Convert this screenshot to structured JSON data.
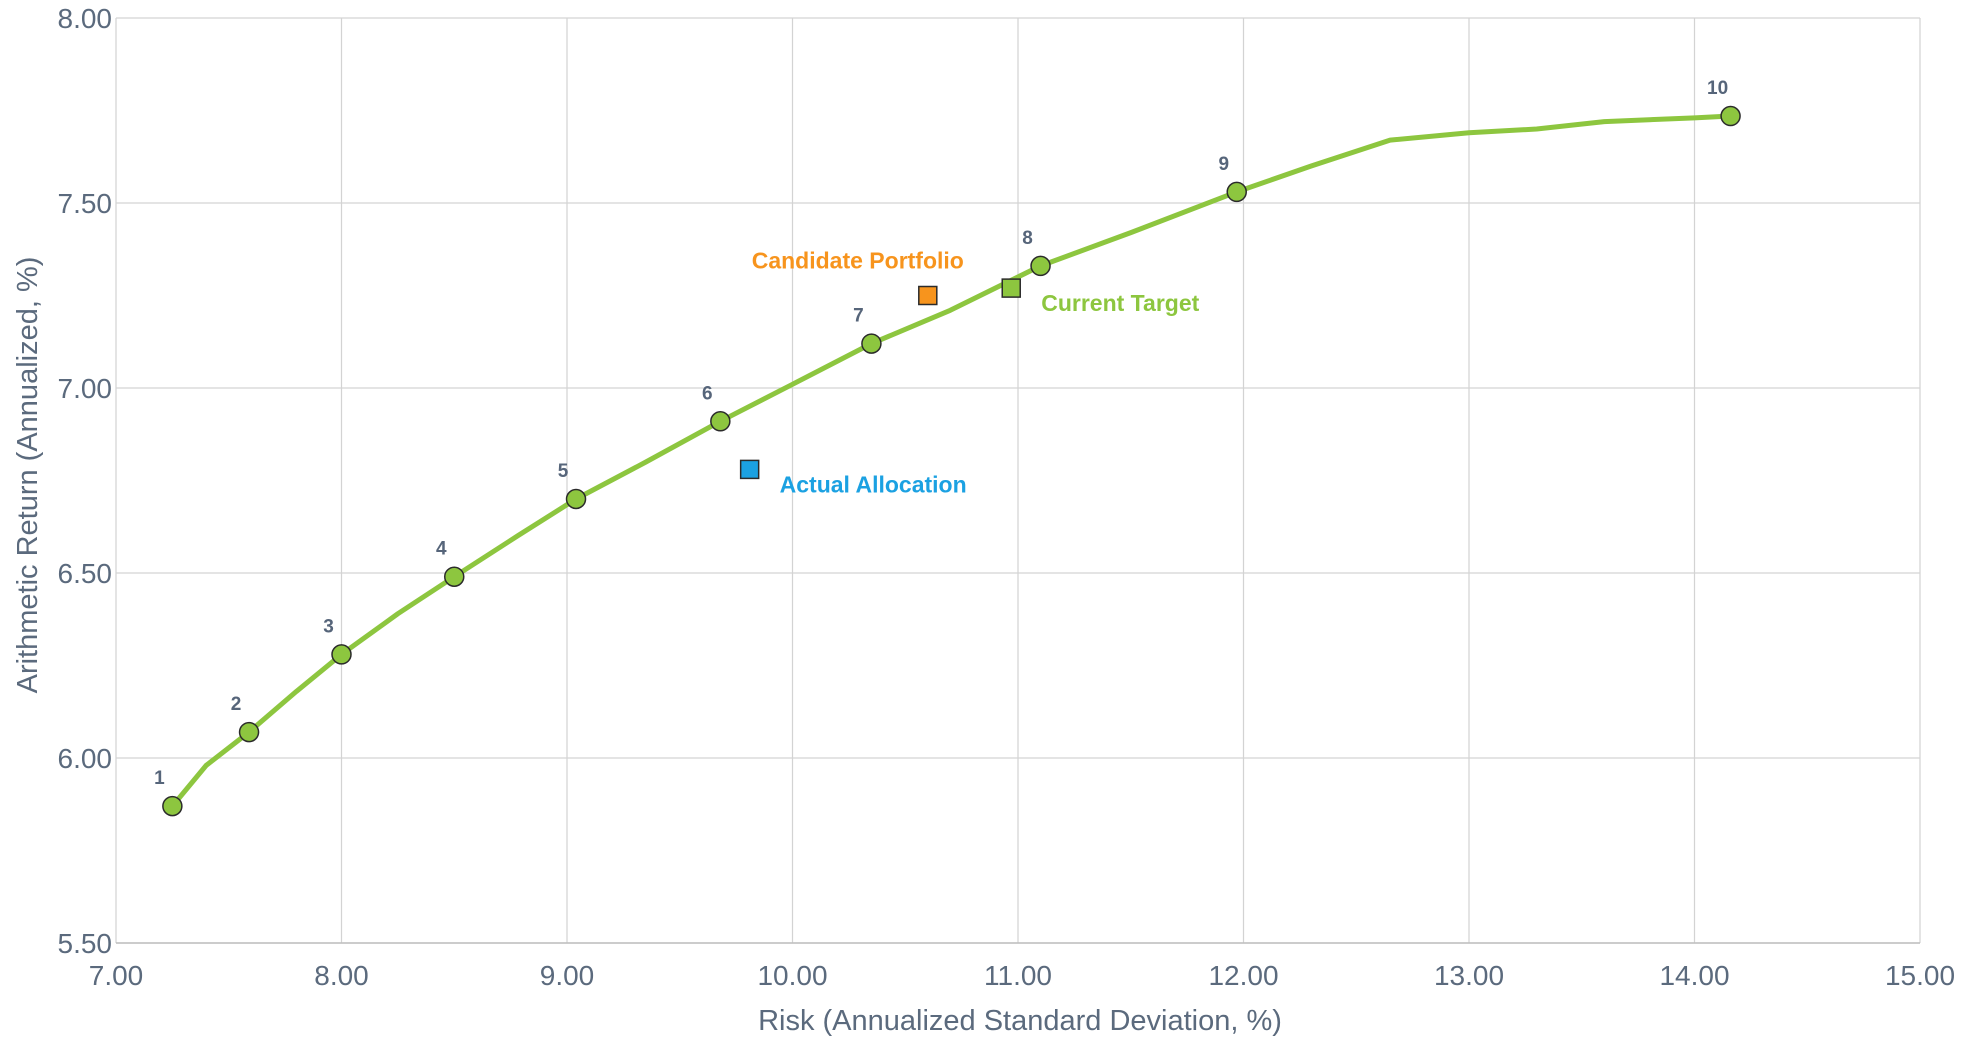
{
  "chart_data": {
    "type": "scatter",
    "xlabel": "Risk (Annualized Standard Deviation, %)",
    "ylabel": "Arithmetic Return (Annualized, %)",
    "xlim": [
      7.0,
      15.0
    ],
    "ylim": [
      5.5,
      8.0
    ],
    "x_ticks": [
      "7.00",
      "8.00",
      "9.00",
      "10.00",
      "11.00",
      "12.00",
      "13.00",
      "14.00",
      "15.00"
    ],
    "y_ticks": [
      "5.50",
      "6.00",
      "6.50",
      "7.00",
      "7.50",
      "8.00"
    ],
    "grid": true,
    "frontier_line": {
      "color": "#8dc63f",
      "x": [
        7.25,
        7.4,
        7.59,
        7.8,
        8.0,
        8.25,
        8.5,
        8.78,
        9.04,
        9.35,
        9.68,
        10.0,
        10.35,
        10.7,
        11.1,
        11.5,
        11.97,
        12.3,
        12.65,
        13.0,
        13.3,
        13.6,
        14.0,
        14.16
      ],
      "y": [
        5.87,
        5.98,
        6.07,
        6.18,
        6.28,
        6.39,
        6.49,
        6.6,
        6.7,
        6.8,
        6.91,
        7.01,
        7.12,
        7.21,
        7.33,
        7.42,
        7.53,
        7.6,
        7.67,
        7.69,
        7.7,
        7.72,
        7.73,
        7.735
      ]
    },
    "frontier_points": {
      "color": "#8dc63f",
      "labels": [
        "1",
        "2",
        "3",
        "4",
        "5",
        "6",
        "7",
        "8",
        "9",
        "10"
      ],
      "x": [
        7.25,
        7.59,
        8.0,
        8.5,
        9.04,
        9.68,
        10.35,
        11.1,
        11.97,
        14.16
      ],
      "y": [
        5.87,
        6.07,
        6.28,
        6.49,
        6.7,
        6.91,
        7.12,
        7.33,
        7.53,
        7.735
      ]
    },
    "portfolios": [
      {
        "name": "Candidate Portfolio",
        "x": 10.6,
        "y": 7.25,
        "color": "#f7941d",
        "label_pos": "above-left"
      },
      {
        "name": "Current Target",
        "x": 10.97,
        "y": 7.27,
        "color": "#8dc63f",
        "label_pos": "below-right"
      },
      {
        "name": "Actual Allocation",
        "x": 9.81,
        "y": 6.78,
        "color": "#1ba1e2",
        "label_pos": "below-right"
      }
    ]
  }
}
